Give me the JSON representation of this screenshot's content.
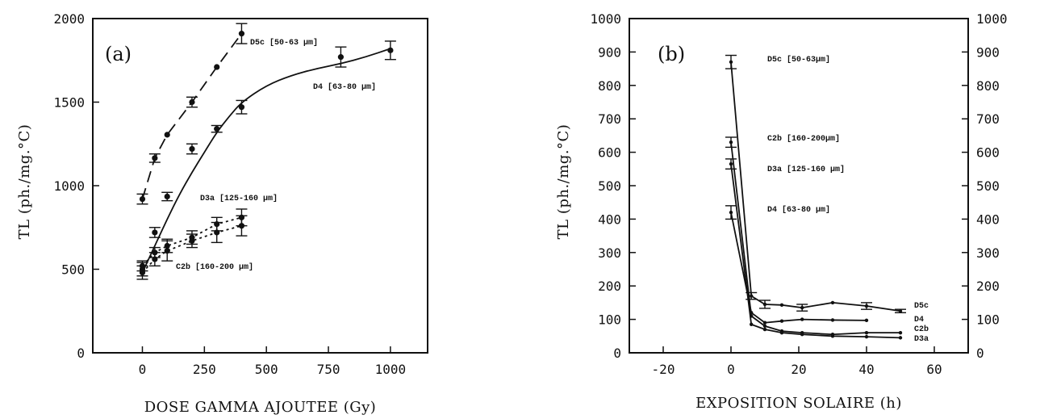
{
  "chart_data": [
    {
      "type": "scatter",
      "panel_label": "(a)",
      "xlabel": "DOSE GAMMA AJOUTEE (Gy)",
      "ylabel": "TL (ph./mg.°C)",
      "xlim": [
        -200,
        1150
      ],
      "ylim": [
        0,
        2000
      ],
      "xticks": [
        0,
        250,
        500,
        750,
        1000
      ],
      "yticks": [
        0,
        500,
        1000,
        1500,
        2000
      ],
      "series": [
        {
          "name": "D5c",
          "annotation": "D5c [50-63 μm]",
          "style": "dashed",
          "points": [
            {
              "x": 0,
              "y": 920,
              "err": 30
            },
            {
              "x": 50,
              "y": 1165,
              "err": 25
            },
            {
              "x": 100,
              "y": 1305,
              "err": 0
            },
            {
              "x": 200,
              "y": 1500,
              "err": 30
            },
            {
              "x": 300,
              "y": 1710,
              "err": 0
            },
            {
              "x": 400,
              "y": 1910,
              "err": 60
            }
          ]
        },
        {
          "name": "D4",
          "annotation": "D4 [63-80 μm]",
          "style": "solid",
          "points": [
            {
              "x": 0,
              "y": 500,
              "err": 40
            },
            {
              "x": 50,
              "y": 720,
              "err": 30
            },
            {
              "x": 100,
              "y": 935,
              "err": 25
            },
            {
              "x": 200,
              "y": 1220,
              "err": 30
            },
            {
              "x": 300,
              "y": 1340,
              "err": 20
            },
            {
              "x": 400,
              "y": 1470,
              "err": 40
            },
            {
              "x": 800,
              "y": 1770,
              "err": 60
            },
            {
              "x": 1000,
              "y": 1810,
              "err": 55
            }
          ],
          "fit": [
            [
              0,
              480
            ],
            [
              50,
              640
            ],
            [
              100,
              800
            ],
            [
              150,
              950
            ],
            [
              200,
              1080
            ],
            [
              250,
              1200
            ],
            [
              300,
              1320
            ],
            [
              350,
              1415
            ],
            [
              400,
              1500
            ],
            [
              500,
              1600
            ],
            [
              600,
              1660
            ],
            [
              700,
              1700
            ],
            [
              800,
              1730
            ],
            [
              900,
              1770
            ],
            [
              1000,
              1820
            ]
          ]
        },
        {
          "name": "D3a",
          "annotation": "D3a [125-160 μm]",
          "style": "dotted",
          "points": [
            {
              "x": 0,
              "y": 520,
              "err": 30
            },
            {
              "x": 50,
              "y": 600,
              "err": 30
            },
            {
              "x": 100,
              "y": 640,
              "err": 40
            },
            {
              "x": 200,
              "y": 690,
              "err": 40
            },
            {
              "x": 300,
              "y": 770,
              "err": 40
            },
            {
              "x": 400,
              "y": 810,
              "err": 50
            }
          ]
        },
        {
          "name": "C2b",
          "annotation": "C2b [160-200 μm]",
          "style": "dotted",
          "points": [
            {
              "x": 0,
              "y": 480,
              "err": 40
            },
            {
              "x": 50,
              "y": 560,
              "err": 40
            },
            {
              "x": 100,
              "y": 610,
              "err": 60
            },
            {
              "x": 200,
              "y": 670,
              "err": 40
            },
            {
              "x": 300,
              "y": 720,
              "err": 60
            },
            {
              "x": 400,
              "y": 760,
              "err": 60
            }
          ]
        }
      ]
    },
    {
      "type": "line",
      "panel_label": "(b)",
      "xlabel": "EXPOSITION SOLAIRE (h)",
      "ylabel": "TL (ph./mg.°C)",
      "xlim": [
        -30,
        70
      ],
      "ylim": [
        0,
        1000
      ],
      "xticks": [
        -20,
        0,
        20,
        40,
        60
      ],
      "yticks": [
        0,
        100,
        200,
        300,
        400,
        500,
        600,
        700,
        800,
        900,
        1000
      ],
      "series": [
        {
          "name": "D5c",
          "annotation": "D5c [50-63μm]",
          "end_label": "D5c",
          "points": [
            {
              "x": 0,
              "y": 870,
              "err": 20
            },
            {
              "x": 6,
              "y": 170,
              "err": 10
            },
            {
              "x": 10,
              "y": 145,
              "err": 12
            },
            {
              "x": 15,
              "y": 143,
              "err": 0
            },
            {
              "x": 21,
              "y": 135,
              "err": 10
            },
            {
              "x": 30,
              "y": 150,
              "err": 0
            },
            {
              "x": 40,
              "y": 140,
              "err": 10
            },
            {
              "x": 50,
              "y": 125,
              "err": 5
            }
          ]
        },
        {
          "name": "C2b",
          "annotation": "C2b [160-200μm]",
          "end_label": "C2b",
          "points": [
            {
              "x": 0,
              "y": 630,
              "err": 15
            },
            {
              "x": 6,
              "y": 110,
              "err": 0
            },
            {
              "x": 10,
              "y": 80,
              "err": 0
            },
            {
              "x": 15,
              "y": 65,
              "err": 0
            },
            {
              "x": 21,
              "y": 60,
              "err": 0
            },
            {
              "x": 30,
              "y": 55,
              "err": 0
            },
            {
              "x": 40,
              "y": 60,
              "err": 0
            },
            {
              "x": 50,
              "y": 60,
              "err": 0
            }
          ]
        },
        {
          "name": "D3a",
          "annotation": "D3a [125-160 μm]",
          "end_label": "D3a",
          "points": [
            {
              "x": 0,
              "y": 565,
              "err": 15
            },
            {
              "x": 6,
              "y": 85,
              "err": 0
            },
            {
              "x": 10,
              "y": 70,
              "err": 0
            },
            {
              "x": 15,
              "y": 60,
              "err": 0
            },
            {
              "x": 21,
              "y": 55,
              "err": 0
            },
            {
              "x": 30,
              "y": 50,
              "err": 0
            },
            {
              "x": 40,
              "y": 48,
              "err": 0
            },
            {
              "x": 50,
              "y": 45,
              "err": 0
            }
          ]
        },
        {
          "name": "D4",
          "annotation": "D4 [63-80 μm]",
          "end_label": "D4",
          "points": [
            {
              "x": 0,
              "y": 420,
              "err": 20
            },
            {
              "x": 6,
              "y": 120,
              "err": 0
            },
            {
              "x": 10,
              "y": 90,
              "err": 0
            },
            {
              "x": 15,
              "y": 95,
              "err": 0
            },
            {
              "x": 21,
              "y": 100,
              "err": 0
            },
            {
              "x": 30,
              "y": 98,
              "err": 0
            },
            {
              "x": 40,
              "y": 97,
              "err": 0
            }
          ]
        }
      ]
    }
  ]
}
